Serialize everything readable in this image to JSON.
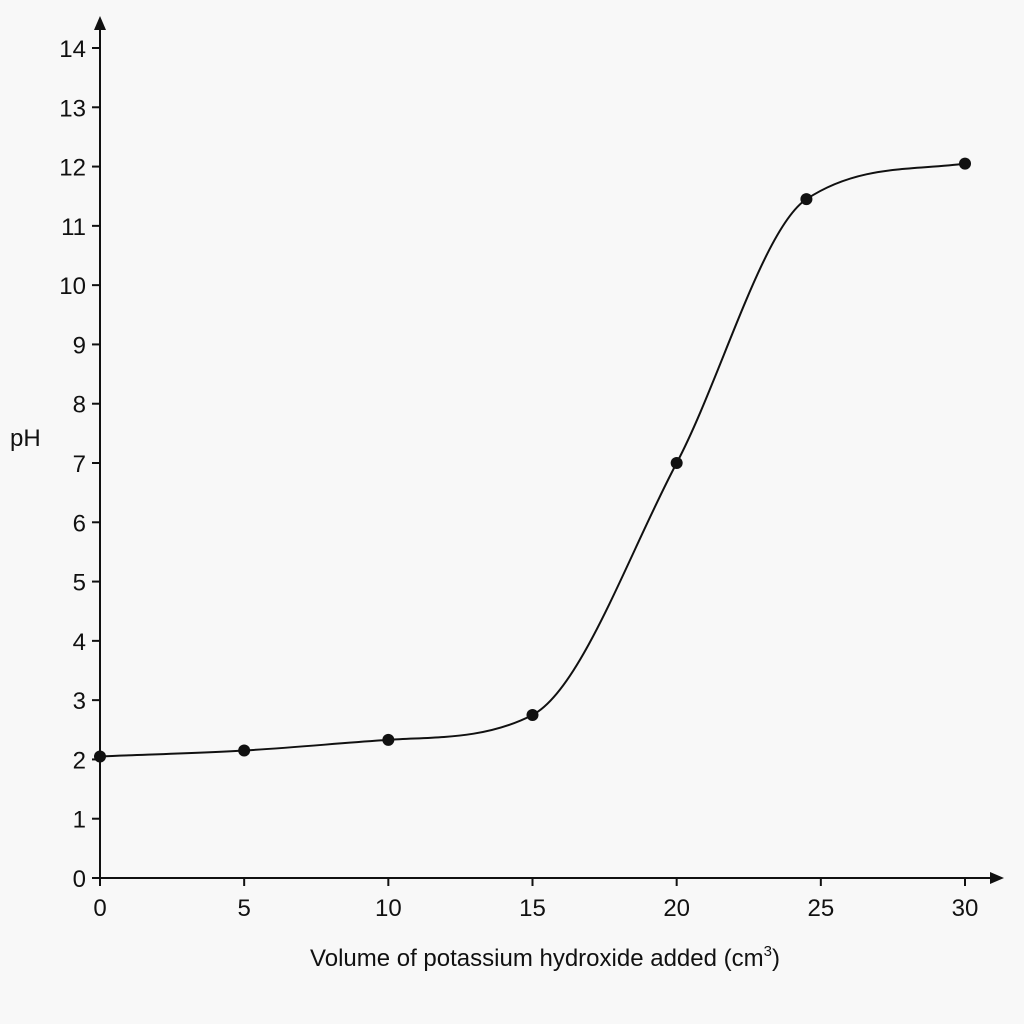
{
  "chart_data": {
    "type": "line",
    "title": "",
    "xlabel": "Volume of potassium hydroxide added (cm",
    "xlabel_superscript": "3",
    "xlabel_suffix": ")",
    "ylabel": "pH",
    "xlim": [
      0,
      30
    ],
    "ylim": [
      0,
      14
    ],
    "xticks": [
      0,
      5,
      10,
      15,
      20,
      25,
      30
    ],
    "yticks": [
      0,
      1,
      2,
      3,
      4,
      5,
      6,
      7,
      8,
      9,
      10,
      11,
      12,
      13,
      14
    ],
    "grid": false,
    "series": [
      {
        "x": [
          0,
          5,
          10,
          15,
          20,
          24.5,
          30
        ],
        "y": [
          2.05,
          2.15,
          2.33,
          2.75,
          7.0,
          11.45,
          12.05
        ]
      }
    ]
  }
}
